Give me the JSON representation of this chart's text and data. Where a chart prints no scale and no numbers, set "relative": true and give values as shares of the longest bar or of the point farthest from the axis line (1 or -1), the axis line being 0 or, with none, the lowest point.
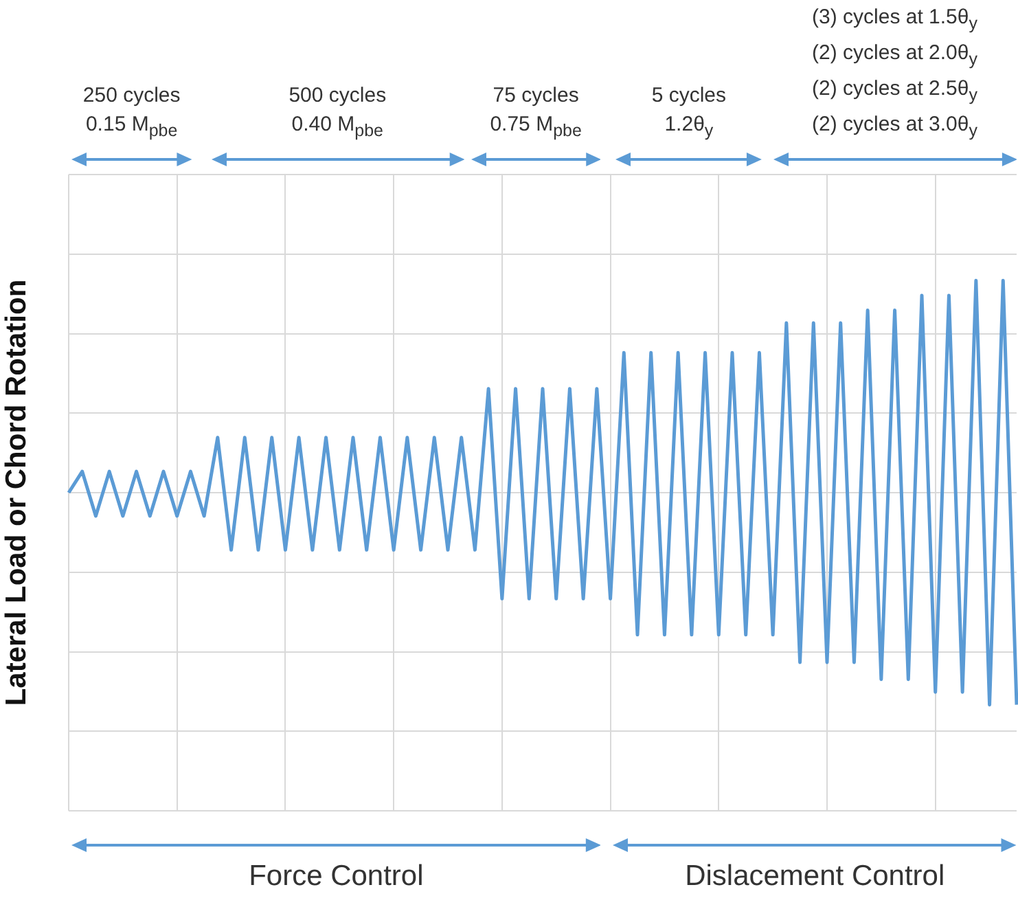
{
  "chart_data": {
    "type": "line",
    "ylabel": "Lateral Load or Chord Rotation",
    "relative": true,
    "grid": true,
    "color": "#5b9bd5",
    "categories": [
      null,
      null,
      null,
      null,
      null,
      null,
      null,
      null,
      null,
      null,
      null,
      null,
      null,
      null,
      null,
      null,
      null,
      null,
      null,
      null,
      null,
      null,
      null,
      null,
      null,
      null,
      null,
      null,
      null,
      null,
      null,
      null,
      null,
      null,
      null,
      null,
      null,
      null,
      null,
      null,
      null,
      null,
      null,
      null,
      null,
      null,
      null,
      null,
      null,
      null,
      null,
      null,
      null,
      null,
      null,
      null,
      null,
      null,
      null,
      null,
      null,
      null,
      null,
      null,
      null,
      null,
      null,
      null,
      null,
      null,
      null
    ],
    "values": [
      0,
      0.1,
      -0.11,
      0.1,
      -0.11,
      0.1,
      -0.11,
      0.1,
      -0.11,
      0.1,
      -0.11,
      0.26,
      -0.27,
      0.26,
      -0.27,
      0.26,
      -0.27,
      0.26,
      -0.27,
      0.26,
      -0.27,
      0.26,
      -0.27,
      0.26,
      -0.27,
      0.26,
      -0.27,
      0.26,
      -0.27,
      0.26,
      -0.27,
      0.49,
      -0.5,
      0.49,
      -0.5,
      0.49,
      -0.5,
      0.49,
      -0.5,
      0.49,
      -0.5,
      0.66,
      -0.67,
      0.66,
      -0.67,
      0.66,
      -0.67,
      0.66,
      -0.67,
      0.66,
      -0.67,
      0.66,
      -0.67,
      0.8,
      -0.8,
      0.8,
      -0.8,
      0.8,
      -0.8,
      0.86,
      -0.88,
      0.86,
      -0.88,
      0.93,
      -0.94,
      0.93,
      -0.94,
      1,
      -1,
      1,
      -1
    ],
    "annotations": [
      "250 cycles\n0.15 M$_{pbe}$",
      "500 cycles\n0.40 M$_{pbe}$",
      "75 cycles\n0.75 M$_{pbe}$",
      "5 cycles\n1.2θ$_{y}$",
      "(3) cycles at 1.5θ$_{y}$\n(2) cycles at 2.0θ$_{y}$\n(2) cycles at 2.5θ$_{y}$\n(2) cycles at 3.0θ$_{y}$",
      "Force Control",
      "Dislacement Control"
    ]
  }
}
